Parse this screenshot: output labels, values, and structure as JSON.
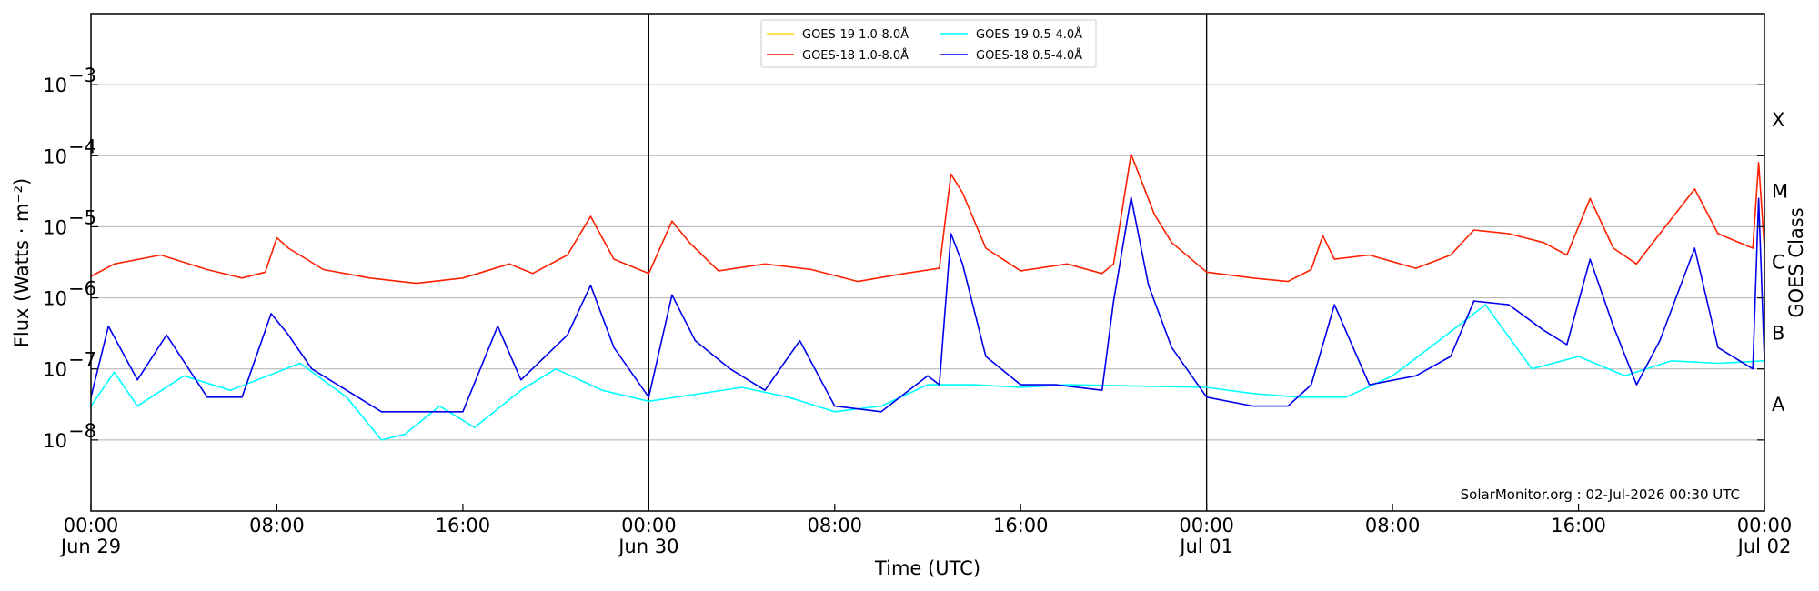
{
  "chart_data": {
    "type": "line",
    "title": "",
    "xlabel": "Time (UTC)",
    "ylabel": "Flux (Watts · m⁻²)",
    "y2label": "GOES Class",
    "yscale": "log",
    "ylim": [
      1e-09,
      0.01
    ],
    "xlim": [
      "2026-06-29T00:00",
      "2026-07-02T00:00"
    ],
    "x_tick_labels": [
      {
        "time": "2026-06-29T00:00",
        "line1": "00:00",
        "line2": "Jun 29"
      },
      {
        "time": "2026-06-29T08:00",
        "line1": "08:00",
        "line2": ""
      },
      {
        "time": "2026-06-29T16:00",
        "line1": "16:00",
        "line2": ""
      },
      {
        "time": "2026-06-30T00:00",
        "line1": "00:00",
        "line2": "Jun 30"
      },
      {
        "time": "2026-06-30T08:00",
        "line1": "08:00",
        "line2": ""
      },
      {
        "time": "2026-06-30T16:00",
        "line1": "16:00",
        "line2": ""
      },
      {
        "time": "2026-07-01T00:00",
        "line1": "00:00",
        "line2": "Jul 01"
      },
      {
        "time": "2026-07-01T08:00",
        "line1": "08:00",
        "line2": ""
      },
      {
        "time": "2026-07-01T16:00",
        "line1": "16:00",
        "line2": ""
      },
      {
        "time": "2026-07-02T00:00",
        "line1": "00:00",
        "line2": "Jul 02"
      }
    ],
    "y_tick_labels": [
      {
        "value": 1e-08,
        "mantissa": "10",
        "exponent": "−8"
      },
      {
        "value": 1e-07,
        "mantissa": "10",
        "exponent": "−7"
      },
      {
        "value": 1e-06,
        "mantissa": "10",
        "exponent": "−6"
      },
      {
        "value": 1e-05,
        "mantissa": "10",
        "exponent": "−5"
      },
      {
        "value": 0.0001,
        "mantissa": "10",
        "exponent": "−4"
      },
      {
        "value": 0.001,
        "mantissa": "10",
        "exponent": "−3"
      }
    ],
    "grid": true,
    "day_separators": [
      "2026-06-30T00:00",
      "2026-07-01T00:00"
    ],
    "goes_classes": [
      {
        "label": "A",
        "flux": 3.16e-08
      },
      {
        "label": "B",
        "flux": 3.16e-07
      },
      {
        "label": "C",
        "flux": 3.16e-06
      },
      {
        "label": "M",
        "flux": 3.16e-05
      },
      {
        "label": "X",
        "flux": 0.000316
      }
    ],
    "legend_position": "top-center",
    "watermark": "SolarMonitor.org : 02-Jul-2026 00:30 UTC",
    "series": [
      {
        "name": "GOES-19 1.0-8.0Å",
        "color": "#ffd700",
        "x": [],
        "y": []
      },
      {
        "name": "GOES-18 1.0-8.0Å",
        "color": "#ff2000",
        "x": [
          "2026-06-29T00:00",
          "2026-06-29T01:00",
          "2026-06-29T03:00",
          "2026-06-29T05:00",
          "2026-06-29T06:30",
          "2026-06-29T07:30",
          "2026-06-29T08:00",
          "2026-06-29T08:30",
          "2026-06-29T10:00",
          "2026-06-29T12:00",
          "2026-06-29T14:00",
          "2026-06-29T16:00",
          "2026-06-29T18:00",
          "2026-06-29T19:00",
          "2026-06-29T20:30",
          "2026-06-29T21:30",
          "2026-06-29T22:30",
          "2026-06-30T00:00",
          "2026-06-30T01:00",
          "2026-06-30T01:45",
          "2026-06-30T03:00",
          "2026-06-30T05:00",
          "2026-06-30T07:00",
          "2026-06-30T09:00",
          "2026-06-30T11:00",
          "2026-06-30T12:30",
          "2026-06-30T13:00",
          "2026-06-30T13:30",
          "2026-06-30T14:30",
          "2026-06-30T16:00",
          "2026-06-30T18:00",
          "2026-06-30T19:30",
          "2026-06-30T20:00",
          "2026-06-30T20:45",
          "2026-06-30T21:45",
          "2026-06-30T22:30",
          "2026-07-01T00:00",
          "2026-07-01T02:00",
          "2026-07-01T03:30",
          "2026-07-01T04:30",
          "2026-07-01T05:00",
          "2026-07-01T05:30",
          "2026-07-01T07:00",
          "2026-07-01T09:00",
          "2026-07-01T10:30",
          "2026-07-01T11:30",
          "2026-07-01T13:00",
          "2026-07-01T14:30",
          "2026-07-01T15:30",
          "2026-07-01T16:30",
          "2026-07-01T17:30",
          "2026-07-01T18:30",
          "2026-07-01T19:30",
          "2026-07-01T21:00",
          "2026-07-01T22:00",
          "2026-07-01T23:30",
          "2026-07-01T23:45",
          "2026-07-02T00:00"
        ],
        "y": [
          2e-06,
          3e-06,
          4e-06,
          2.5e-06,
          1.9e-06,
          2.3e-06,
          7e-06,
          5e-06,
          2.5e-06,
          1.9e-06,
          1.6e-06,
          1.9e-06,
          3e-06,
          2.2e-06,
          4e-06,
          1.4e-05,
          3.5e-06,
          2.2e-06,
          1.2e-05,
          6e-06,
          2.4e-06,
          3e-06,
          2.5e-06,
          1.7e-06,
          2.2e-06,
          2.6e-06,
          5.5e-05,
          3e-05,
          5e-06,
          2.4e-06,
          3e-06,
          2.2e-06,
          3e-06,
          0.000105,
          1.5e-05,
          6e-06,
          2.3e-06,
          1.9e-06,
          1.7e-06,
          2.5e-06,
          7.5e-06,
          3.5e-06,
          4e-06,
          2.6e-06,
          4e-06,
          9e-06,
          8e-06,
          6e-06,
          4e-06,
          2.5e-05,
          5e-06,
          3e-06,
          8e-06,
          3.4e-05,
          8e-06,
          5e-06,
          8e-05,
          5e-06
        ]
      },
      {
        "name": "GOES-19 0.5-4.0Å",
        "color": "#00ffff",
        "x": [
          "2026-06-29T00:00",
          "2026-06-29T01:00",
          "2026-06-29T02:00",
          "2026-06-29T04:00",
          "2026-06-29T06:00",
          "2026-06-29T09:00",
          "2026-06-29T11:00",
          "2026-06-29T12:30",
          "2026-06-29T13:30",
          "2026-06-29T15:00",
          "2026-06-29T16:30",
          "2026-06-29T18:30",
          "2026-06-29T20:00",
          "2026-06-29T22:00",
          "2026-06-30T00:00",
          "2026-06-30T04:00",
          "2026-06-30T06:00",
          "2026-06-30T08:00",
          "2026-06-30T10:00",
          "2026-06-30T12:00",
          "2026-06-30T14:00",
          "2026-06-30T16:00",
          "2026-06-30T18:00",
          "2026-07-01T00:00",
          "2026-07-01T02:00",
          "2026-07-01T04:00",
          "2026-07-01T06:00",
          "2026-07-01T08:00",
          "2026-07-01T10:00",
          "2026-07-01T12:00",
          "2026-07-01T14:00",
          "2026-07-01T16:00",
          "2026-07-01T18:00",
          "2026-07-01T20:00",
          "2026-07-01T22:00",
          "2026-07-02T00:00"
        ],
        "y": [
          3e-08,
          9e-08,
          3e-08,
          8e-08,
          5e-08,
          1.2e-07,
          4e-08,
          1e-08,
          1.2e-08,
          3e-08,
          1.5e-08,
          5e-08,
          1e-07,
          5e-08,
          3.5e-08,
          5.5e-08,
          4e-08,
          2.5e-08,
          3e-08,
          6e-08,
          6e-08,
          5.5e-08,
          6e-08,
          5.5e-08,
          4.5e-08,
          4e-08,
          4e-08,
          8e-08,
          2.5e-07,
          8e-07,
          1e-07,
          1.5e-07,
          8e-08,
          1.3e-07,
          1.2e-07,
          1.3e-07
        ]
      },
      {
        "name": "GOES-18 0.5-4.0Å",
        "color": "#0000ee",
        "x": [
          "2026-06-29T00:00",
          "2026-06-29T00:45",
          "2026-06-29T02:00",
          "2026-06-29T03:15",
          "2026-06-29T05:00",
          "2026-06-29T06:30",
          "2026-06-29T07:45",
          "2026-06-29T08:30",
          "2026-06-29T09:30",
          "2026-06-29T11:00",
          "2026-06-29T12:30",
          "2026-06-29T14:00",
          "2026-06-29T16:00",
          "2026-06-29T17:30",
          "2026-06-29T18:30",
          "2026-06-29T20:30",
          "2026-06-29T21:30",
          "2026-06-29T22:30",
          "2026-06-30T00:00",
          "2026-06-30T01:00",
          "2026-06-30T02:00",
          "2026-06-30T03:30",
          "2026-06-30T05:00",
          "2026-06-30T06:30",
          "2026-06-30T08:00",
          "2026-06-30T10:00",
          "2026-06-30T12:00",
          "2026-06-30T12:30",
          "2026-06-30T13:00",
          "2026-06-30T13:30",
          "2026-06-30T14:30",
          "2026-06-30T16:00",
          "2026-06-30T17:30",
          "2026-06-30T19:30",
          "2026-06-30T20:00",
          "2026-06-30T20:45",
          "2026-06-30T21:30",
          "2026-06-30T22:30",
          "2026-07-01T00:00",
          "2026-07-01T02:00",
          "2026-07-01T03:30",
          "2026-07-01T04:30",
          "2026-07-01T05:30",
          "2026-07-01T07:00",
          "2026-07-01T09:00",
          "2026-07-01T10:30",
          "2026-07-01T11:30",
          "2026-07-01T13:00",
          "2026-07-01T14:30",
          "2026-07-01T15:30",
          "2026-07-01T16:30",
          "2026-07-01T17:30",
          "2026-07-01T18:30",
          "2026-07-01T19:30",
          "2026-07-01T21:00",
          "2026-07-01T22:00",
          "2026-07-01T23:30",
          "2026-07-01T23:45",
          "2026-07-02T00:00"
        ],
        "y": [
          4e-08,
          4e-07,
          7e-08,
          3e-07,
          4e-08,
          4e-08,
          6e-07,
          3e-07,
          1e-07,
          5e-08,
          2.5e-08,
          2.5e-08,
          2.5e-08,
          4e-07,
          7e-08,
          3e-07,
          1.5e-06,
          2e-07,
          4e-08,
          1.1e-06,
          2.5e-07,
          1e-07,
          5e-08,
          2.5e-07,
          3e-08,
          2.5e-08,
          8e-08,
          6e-08,
          8e-06,
          3e-06,
          1.5e-07,
          6e-08,
          6e-08,
          5e-08,
          9e-07,
          2.6e-05,
          1.5e-06,
          2e-07,
          4e-08,
          3e-08,
          3e-08,
          6e-08,
          8e-07,
          6e-08,
          8e-08,
          1.5e-07,
          9e-07,
          8e-07,
          3.5e-07,
          2.2e-07,
          3.5e-06,
          4e-07,
          6e-08,
          2.5e-07,
          5e-06,
          2e-07,
          1e-07,
          2.5e-05,
          1.3e-07
        ]
      }
    ]
  }
}
